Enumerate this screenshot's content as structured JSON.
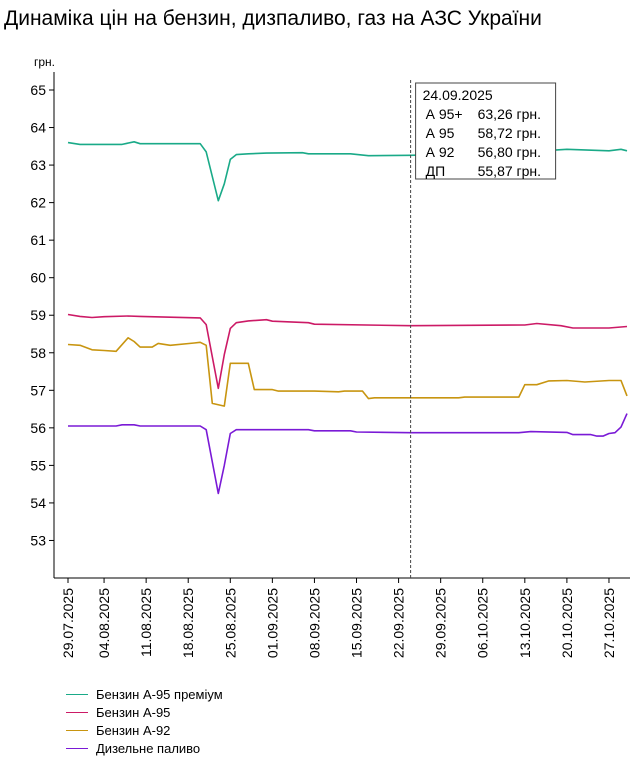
{
  "title": "Динаміка цін на бензин, дизпаливо, газ на АЗС України",
  "chart_data": {
    "type": "line",
    "title": "Динаміка цін на бензин, дизпаливо, газ на АЗС України",
    "ylabel": "грн.",
    "ylim": [
      52,
      65
    ],
    "yticks": [
      53,
      54,
      55,
      56,
      57,
      58,
      59,
      60,
      61,
      62,
      63,
      64,
      65
    ],
    "x_start": "29.07.2025",
    "x_end": "30.10.2025",
    "xticks": [
      "29.07.2025",
      "04.08.2025",
      "11.08.2025",
      "18.08.2025",
      "25.08.2025",
      "01.09.2025",
      "08.09.2025",
      "15.09.2025",
      "22.09.2025",
      "29.09.2025",
      "06.10.2025",
      "13.10.2025",
      "20.10.2025",
      "27.10.2025"
    ],
    "grid": false,
    "legend_position": "bottom",
    "cursor": {
      "date": "24.09.2025",
      "rows": [
        {
          "label": "А 95+",
          "value": "63,26 грн."
        },
        {
          "label": "А 95",
          "value": "58,72 грн."
        },
        {
          "label": "А 92",
          "value": "56,80 грн."
        },
        {
          "label": "ДП",
          "value": "55,87 грн."
        }
      ]
    },
    "series": [
      {
        "name": "Бензин А-95 преміум",
        "color": "#1aaa88",
        "points": [
          [
            "29.07.2025",
            63.6
          ],
          [
            "31.07.2025",
            63.55
          ],
          [
            "07.08.2025",
            63.55
          ],
          [
            "09.08.2025",
            63.62
          ],
          [
            "10.08.2025",
            63.57
          ],
          [
            "20.08.2025",
            63.57
          ],
          [
            "21.08.2025",
            63.35
          ],
          [
            "23.08.2025",
            62.05
          ],
          [
            "24.08.2025",
            62.5
          ],
          [
            "25.08.2025",
            63.15
          ],
          [
            "26.08.2025",
            63.28
          ],
          [
            "28.08.2025",
            63.3
          ],
          [
            "31.08.2025",
            63.32
          ],
          [
            "06.09.2025",
            63.33
          ],
          [
            "07.09.2025",
            63.3
          ],
          [
            "14.09.2025",
            63.3
          ],
          [
            "17.09.2025",
            63.25
          ],
          [
            "24.09.2025",
            63.26
          ],
          [
            "13.10.2025",
            63.35
          ],
          [
            "20.10.2025",
            63.42
          ],
          [
            "27.10.2025",
            63.38
          ],
          [
            "29.10.2025",
            63.42
          ],
          [
            "30.10.2025",
            63.38
          ]
        ]
      },
      {
        "name": "Бензин А-95",
        "color": "#cc1a66",
        "points": [
          [
            "29.07.2025",
            59.02
          ],
          [
            "31.07.2025",
            58.97
          ],
          [
            "02.08.2025",
            58.94
          ],
          [
            "04.08.2025",
            58.96
          ],
          [
            "08.08.2025",
            58.98
          ],
          [
            "10.08.2025",
            58.97
          ],
          [
            "20.08.2025",
            58.93
          ],
          [
            "21.08.2025",
            58.75
          ],
          [
            "23.08.2025",
            57.05
          ],
          [
            "24.08.2025",
            57.95
          ],
          [
            "25.08.2025",
            58.65
          ],
          [
            "26.08.2025",
            58.8
          ],
          [
            "28.08.2025",
            58.85
          ],
          [
            "31.08.2025",
            58.88
          ],
          [
            "01.09.2025",
            58.84
          ],
          [
            "07.09.2025",
            58.8
          ],
          [
            "08.09.2025",
            58.76
          ],
          [
            "24.09.2025",
            58.72
          ],
          [
            "13.10.2025",
            58.74
          ],
          [
            "15.10.2025",
            58.78
          ],
          [
            "19.10.2025",
            58.72
          ],
          [
            "21.10.2025",
            58.66
          ],
          [
            "27.10.2025",
            58.66
          ],
          [
            "30.10.2025",
            58.7
          ]
        ]
      },
      {
        "name": "Бензин А-92",
        "color": "#c89510",
        "points": [
          [
            "29.07.2025",
            58.22
          ],
          [
            "31.07.2025",
            58.2
          ],
          [
            "02.08.2025",
            58.08
          ],
          [
            "04.08.2025",
            58.06
          ],
          [
            "06.08.2025",
            58.04
          ],
          [
            "08.08.2025",
            58.4
          ],
          [
            "09.08.2025",
            58.3
          ],
          [
            "10.08.2025",
            58.15
          ],
          [
            "12.08.2025",
            58.15
          ],
          [
            "13.08.2025",
            58.25
          ],
          [
            "15.08.2025",
            58.2
          ],
          [
            "19.08.2025",
            58.26
          ],
          [
            "20.08.2025",
            58.28
          ],
          [
            "21.08.2025",
            58.2
          ],
          [
            "22.08.2025",
            56.65
          ],
          [
            "24.08.2025",
            56.58
          ],
          [
            "25.08.2025",
            57.72
          ],
          [
            "28.08.2025",
            57.72
          ],
          [
            "29.08.2025",
            57.02
          ],
          [
            "01.09.2025",
            57.02
          ],
          [
            "02.09.2025",
            56.98
          ],
          [
            "08.09.2025",
            56.98
          ],
          [
            "12.09.2025",
            56.96
          ],
          [
            "13.09.2025",
            56.98
          ],
          [
            "16.09.2025",
            56.98
          ],
          [
            "17.09.2025",
            56.78
          ],
          [
            "18.09.2025",
            56.8
          ],
          [
            "22.09.2025",
            56.8
          ],
          [
            "24.09.2025",
            56.8
          ],
          [
            "02.10.2025",
            56.8
          ],
          [
            "03.10.2025",
            56.82
          ],
          [
            "07.10.2025",
            56.82
          ],
          [
            "10.10.2025",
            56.82
          ],
          [
            "12.10.2025",
            56.82
          ],
          [
            "13.10.2025",
            57.15
          ],
          [
            "15.10.2025",
            57.15
          ],
          [
            "17.10.2025",
            57.25
          ],
          [
            "20.10.2025",
            57.26
          ],
          [
            "23.10.2025",
            57.22
          ],
          [
            "27.10.2025",
            57.26
          ],
          [
            "29.10.2025",
            57.26
          ],
          [
            "30.10.2025",
            56.85
          ]
        ]
      },
      {
        "name": "Дизельне паливо",
        "color": "#7a1ad6",
        "points": [
          [
            "29.07.2025",
            56.05
          ],
          [
            "06.08.2025",
            56.05
          ],
          [
            "07.08.2025",
            56.08
          ],
          [
            "09.08.2025",
            56.08
          ],
          [
            "10.08.2025",
            56.05
          ],
          [
            "20.08.2025",
            56.05
          ],
          [
            "21.08.2025",
            55.95
          ],
          [
            "23.08.2025",
            54.25
          ],
          [
            "24.08.2025",
            55.0
          ],
          [
            "25.08.2025",
            55.85
          ],
          [
            "26.08.2025",
            55.95
          ],
          [
            "07.09.2025",
            55.95
          ],
          [
            "08.09.2025",
            55.92
          ],
          [
            "14.09.2025",
            55.92
          ],
          [
            "15.09.2025",
            55.89
          ],
          [
            "24.09.2025",
            55.87
          ],
          [
            "12.10.2025",
            55.87
          ],
          [
            "14.10.2025",
            55.9
          ],
          [
            "20.10.2025",
            55.88
          ],
          [
            "21.10.2025",
            55.82
          ],
          [
            "24.10.2025",
            55.82
          ],
          [
            "25.10.2025",
            55.78
          ],
          [
            "26.10.2025",
            55.78
          ],
          [
            "27.10.2025",
            55.85
          ],
          [
            "28.10.2025",
            55.87
          ],
          [
            "29.10.2025",
            56.02
          ],
          [
            "30.10.2025",
            56.38
          ]
        ]
      }
    ]
  }
}
